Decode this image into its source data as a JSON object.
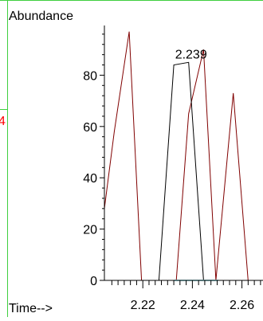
{
  "chart_data": {
    "type": "line",
    "ylabel": "Abundance",
    "xlabel": "Time-->",
    "xlim": [
      2.2045,
      2.2685
    ],
    "ylim": [
      -3,
      100
    ],
    "xticks": [
      {
        "value": 2.22,
        "label": "2.22"
      },
      {
        "value": 2.24,
        "label": "2.24"
      },
      {
        "value": 2.26,
        "label": "2.26"
      }
    ],
    "xminor_step": 0.0025,
    "xminor_start": 2.2075,
    "yticks": [
      {
        "value": 0,
        "label": "0"
      },
      {
        "value": 20,
        "label": "20"
      },
      {
        "value": 40,
        "label": "40"
      },
      {
        "value": 60,
        "label": "60"
      },
      {
        "value": 80,
        "label": "80"
      }
    ],
    "ytick_step": 20,
    "yminor_step": 4,
    "series": [
      {
        "color": "#800000",
        "x": [
          2.2045,
          2.2085,
          2.2145,
          2.2195,
          2.2265,
          2.2335,
          2.2385,
          2.2445,
          2.2495,
          2.2565,
          2.2625
        ],
        "y": [
          28,
          58,
          97,
          0,
          0,
          0,
          65,
          90,
          0,
          73,
          0
        ]
      },
      {
        "color": "#000000",
        "x": [
          2.2265,
          2.2325,
          2.2385,
          2.2445,
          2.2515,
          2.2585
        ],
        "y": [
          0,
          84,
          85,
          0,
          0,
          0
        ]
      },
      {
        "color": "#b0eaf0",
        "x": [
          2.2325,
          2.2505
        ],
        "y": [
          0,
          0
        ]
      }
    ],
    "annotations": [
      {
        "text": "2.239",
        "x": 2.2385,
        "y": 85
      }
    ],
    "edge_marker": {
      "text": "4",
      "color": "#ff0000"
    },
    "frame_color": "#3fcf3f"
  }
}
